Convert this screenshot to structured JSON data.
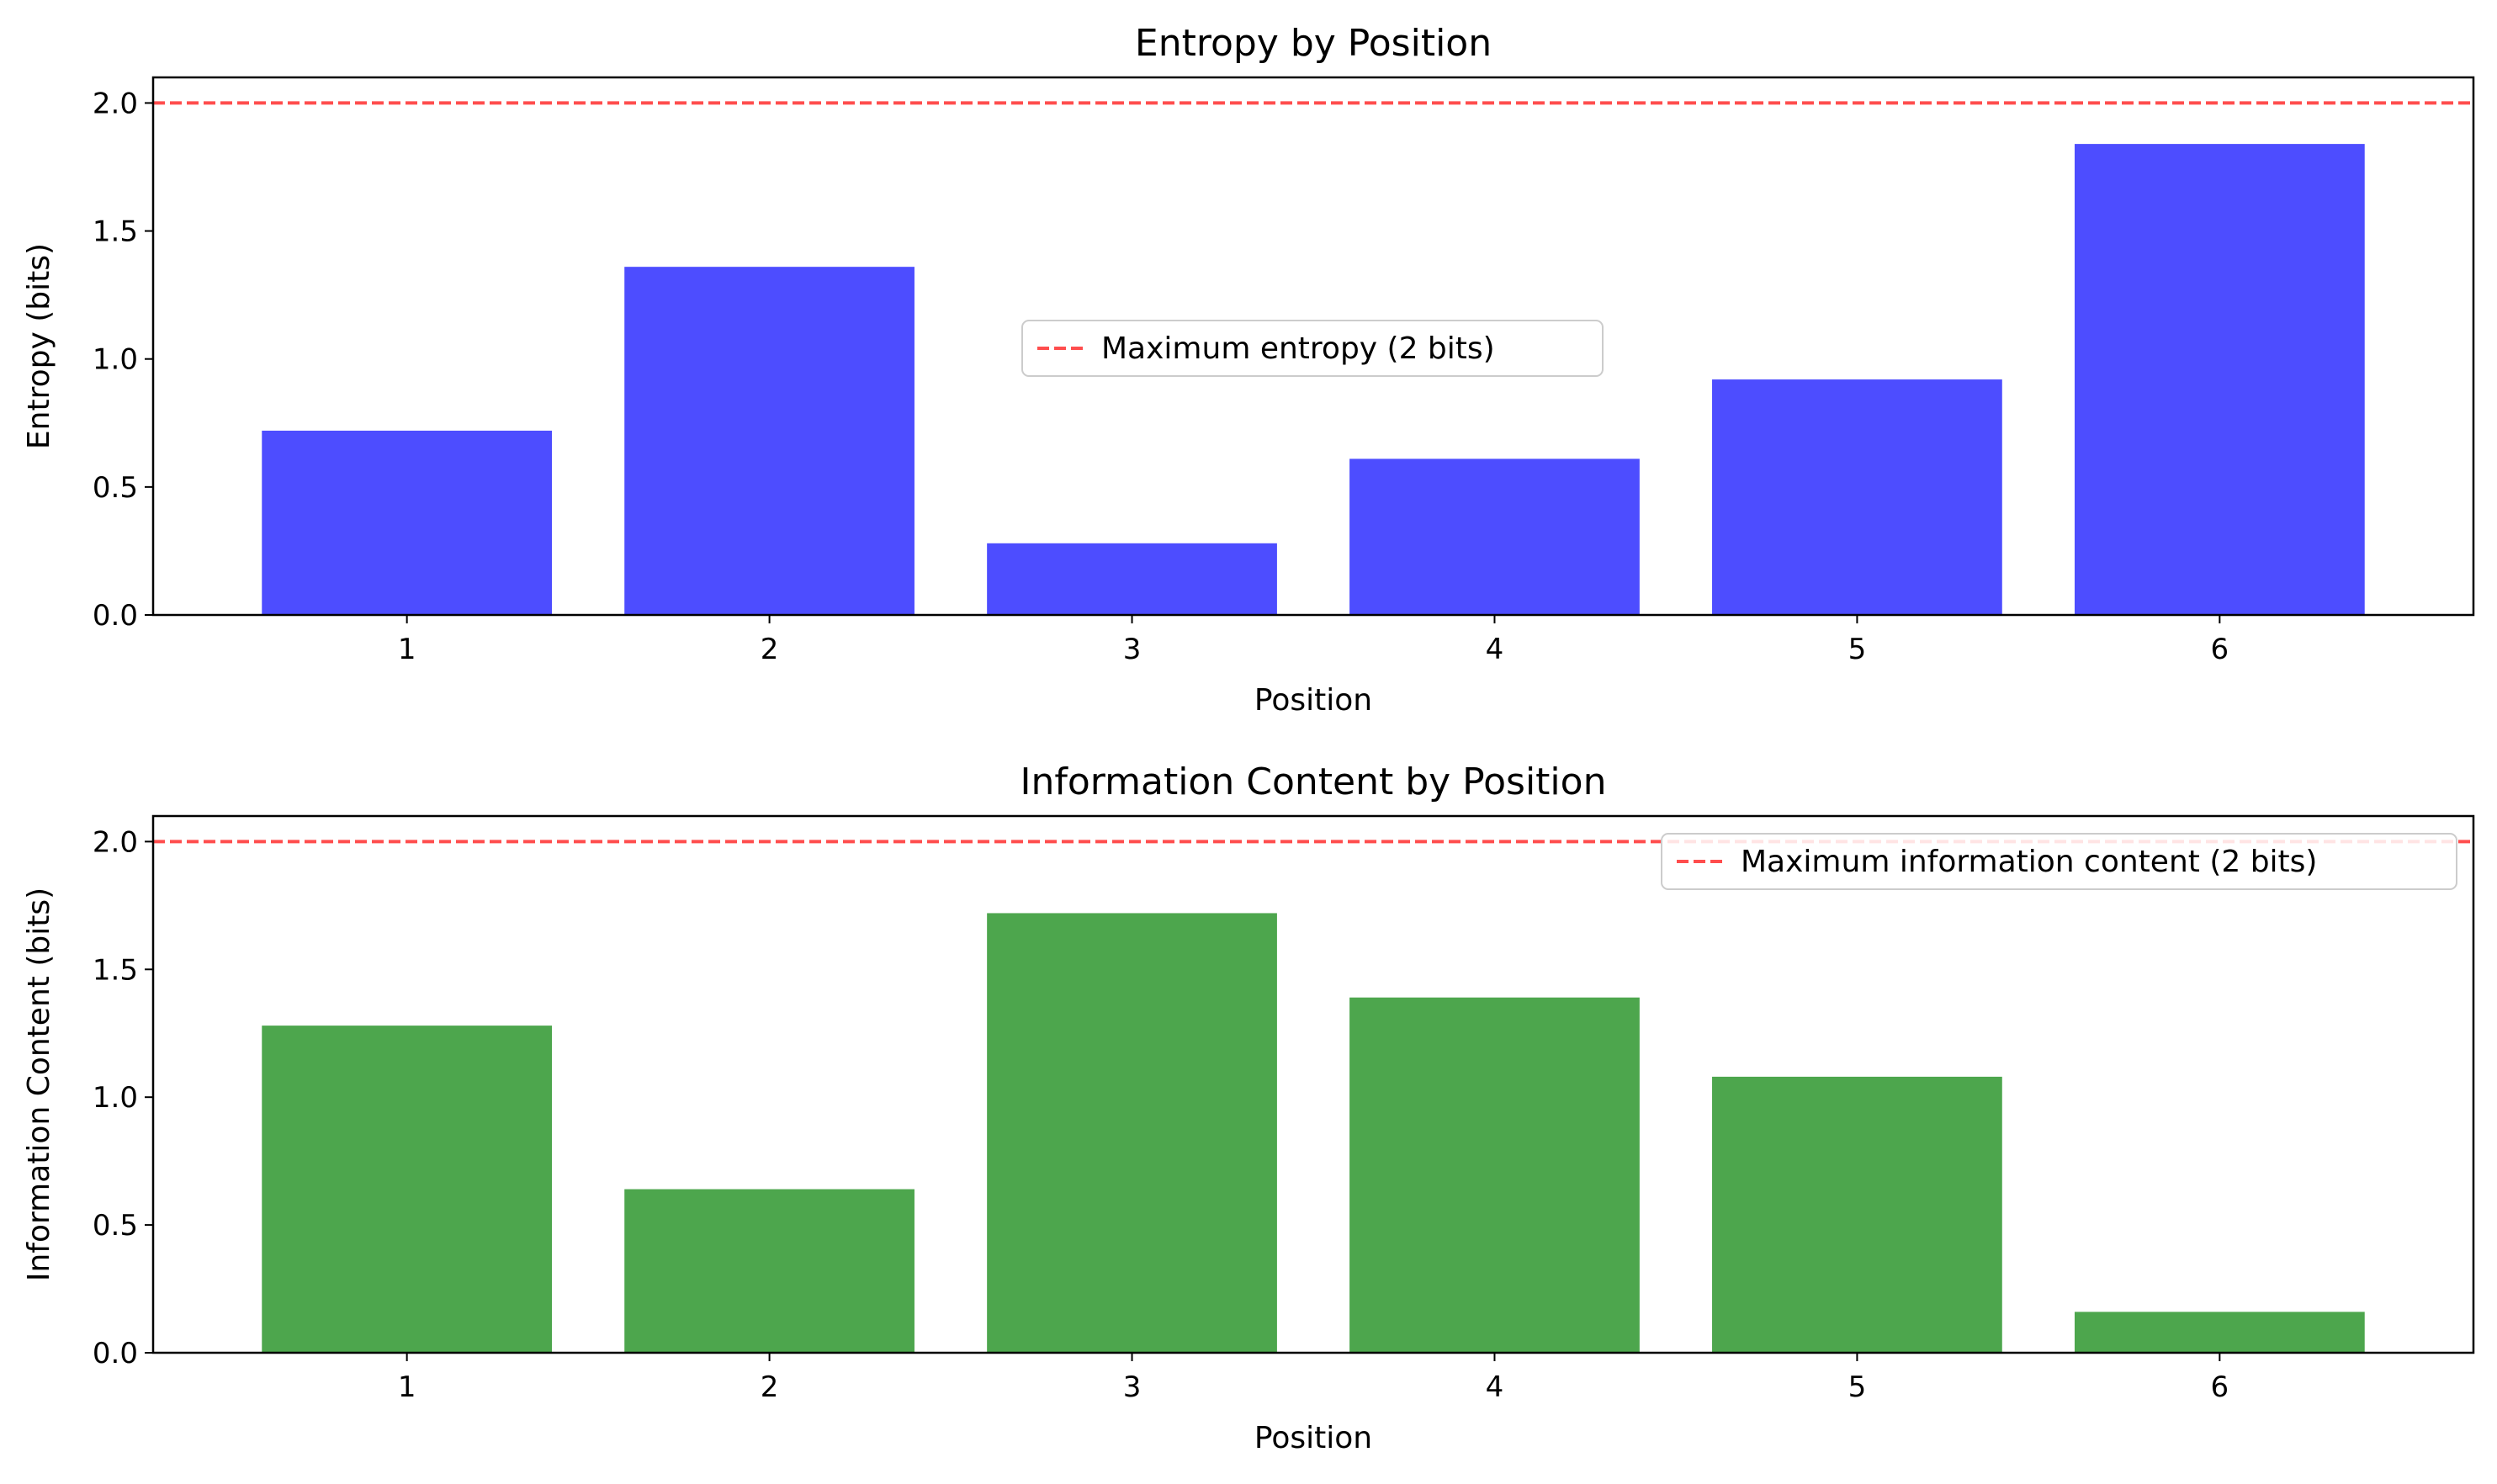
{
  "chart_data": [
    {
      "type": "bar",
      "title": "Entropy by Position",
      "xlabel": "Position",
      "ylabel": "Entropy (bits)",
      "categories": [
        "1",
        "2",
        "3",
        "4",
        "5",
        "6"
      ],
      "values": [
        0.72,
        1.36,
        0.28,
        0.61,
        0.92,
        1.84
      ],
      "ylim": [
        0,
        2.1
      ],
      "yticks": [
        "0.0",
        "0.5",
        "1.0",
        "1.5",
        "2.0"
      ],
      "bar_color": "#4d4dff",
      "reference_line": {
        "y": 2.0,
        "label": "Maximum entropy (2 bits)",
        "color": "#ff4d4d",
        "style": "dashed"
      },
      "legend_placement": "center",
      "grid": false
    },
    {
      "type": "bar",
      "title": "Information Content by Position",
      "xlabel": "Position",
      "ylabel": "Information Content (bits)",
      "categories": [
        "1",
        "2",
        "3",
        "4",
        "5",
        "6"
      ],
      "values": [
        1.28,
        0.64,
        1.72,
        1.39,
        1.08,
        0.16
      ],
      "ylim": [
        0,
        2.1
      ],
      "yticks": [
        "0.0",
        "0.5",
        "1.0",
        "1.5",
        "2.0"
      ],
      "bar_color": "#4da64d",
      "reference_line": {
        "y": 2.0,
        "label": "Maximum information content (2 bits)",
        "color": "#ff4d4d",
        "style": "dashed"
      },
      "legend_placement": "upper right",
      "grid": false
    }
  ]
}
